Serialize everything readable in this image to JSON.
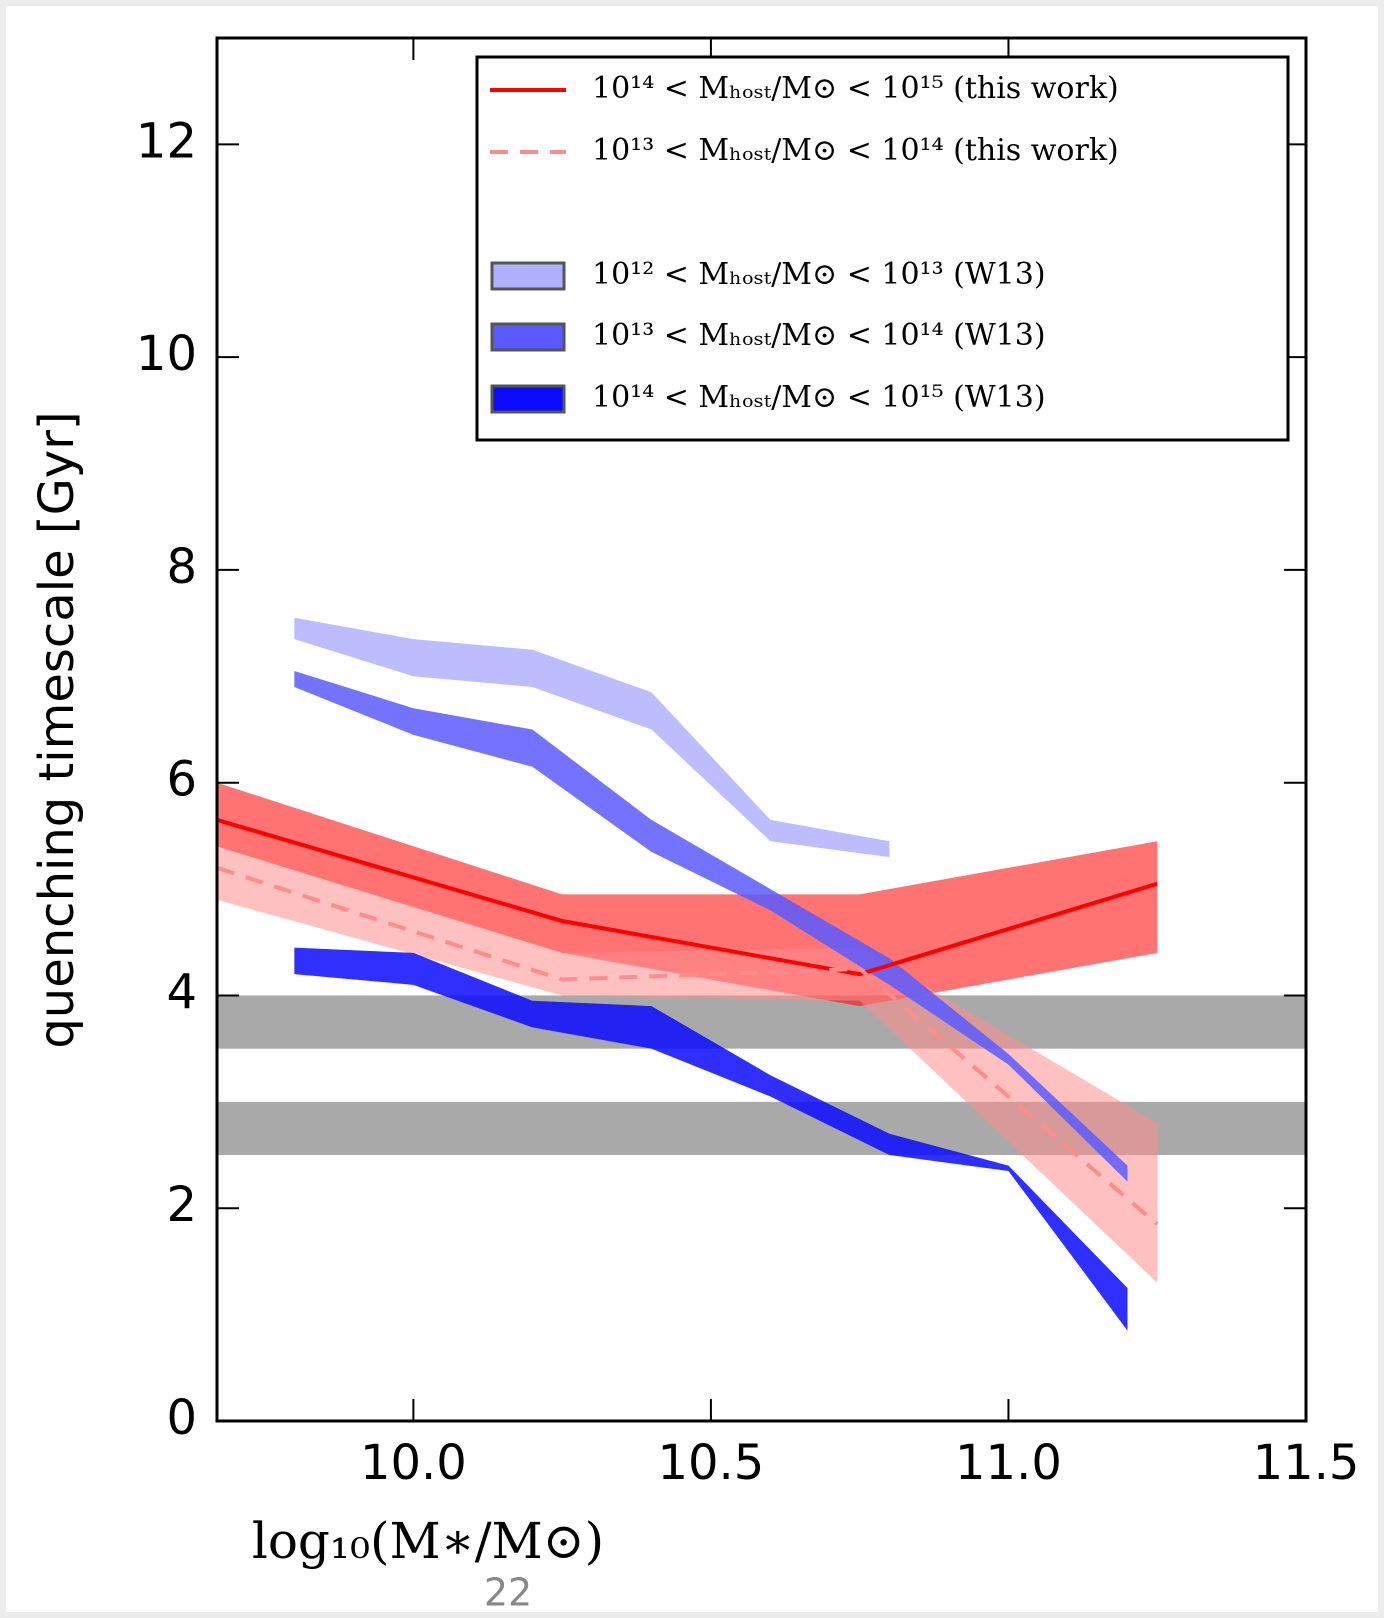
{
  "chart_data": {
    "type": "band-line",
    "y_label": "quenching timescale [Gyr]",
    "x_label": "log₁₀(M∗/M⊙)",
    "page_number": "22",
    "xlim": [
      9.67,
      11.5
    ],
    "ylim": [
      0,
      13
    ],
    "xticks": [
      {
        "value": 10,
        "label": "10.0"
      },
      {
        "value": 10.5,
        "label": "10.5"
      },
      {
        "value": 11,
        "label": "11.0"
      },
      {
        "value": 11.5,
        "label": "11.5"
      }
    ],
    "yticks": [
      0,
      2,
      4,
      6,
      8,
      10,
      12
    ],
    "hbands": [
      [
        3.5,
        4.0
      ],
      [
        2.5,
        3.0
      ]
    ],
    "hband_color": "#8c8c8c",
    "series": [
      {
        "name": "10¹⁴ < Mₕₒₛₜ/M⊙ < 10¹⁵ (this work)",
        "color": "#ff0000",
        "dashed": false,
        "x": [
          9.67,
          10.25,
          10.75,
          11.25
        ],
        "values": [
          5.65,
          4.7,
          4.2,
          5.05
        ],
        "lower": [
          5.4,
          4.4,
          3.9,
          4.4
        ],
        "upper": [
          6.0,
          4.95,
          4.95,
          5.45
        ]
      },
      {
        "name": "10¹³ < Mₕₒₛₜ/M⊙ < 10¹⁴ (this work)",
        "color": "#ff8c8c",
        "dashed": true,
        "x": [
          9.67,
          10.25,
          10.75,
          11.25
        ],
        "values": [
          5.2,
          4.15,
          4.25,
          1.85
        ],
        "lower": [
          4.9,
          4.0,
          3.95,
          1.3
        ],
        "upper": [
          5.4,
          4.4,
          4.45,
          2.8
        ]
      },
      {
        "name": "10¹² < Mₕₒₛₜ/M⊙ < 10¹³ (W13)",
        "color": "#b0b0ff",
        "x": [
          9.8,
          10.0,
          10.2,
          10.4,
          10.6,
          10.8
        ],
        "lower": [
          7.35,
          7.0,
          6.9,
          6.5,
          5.45,
          5.3
        ],
        "upper": [
          7.55,
          7.35,
          7.25,
          6.85,
          5.65,
          5.45
        ]
      },
      {
        "name": "10¹³ < Mₕₒₛₜ/M⊙ < 10¹⁴ (W13)",
        "color": "#5a5aff",
        "x": [
          9.8,
          10.0,
          10.2,
          10.4,
          10.6,
          10.8,
          11.0,
          11.2
        ],
        "lower": [
          6.9,
          6.45,
          6.15,
          5.35,
          4.8,
          4.1,
          3.35,
          2.25
        ],
        "upper": [
          7.05,
          6.7,
          6.5,
          5.65,
          5.0,
          4.35,
          3.45,
          2.4
        ]
      },
      {
        "name": "10¹⁴ < Mₕₒₛₜ/M⊙ < 10¹⁵ (W13)",
        "color": "#0a0aff",
        "x": [
          9.8,
          10.0,
          10.2,
          10.4,
          10.6,
          10.8,
          11.0,
          11.2
        ],
        "lower": [
          4.2,
          4.1,
          3.7,
          3.5,
          3.05,
          2.5,
          2.35,
          0.85
        ],
        "upper": [
          4.45,
          4.4,
          3.95,
          3.9,
          3.25,
          2.7,
          2.4,
          1.25
        ]
      }
    ]
  }
}
